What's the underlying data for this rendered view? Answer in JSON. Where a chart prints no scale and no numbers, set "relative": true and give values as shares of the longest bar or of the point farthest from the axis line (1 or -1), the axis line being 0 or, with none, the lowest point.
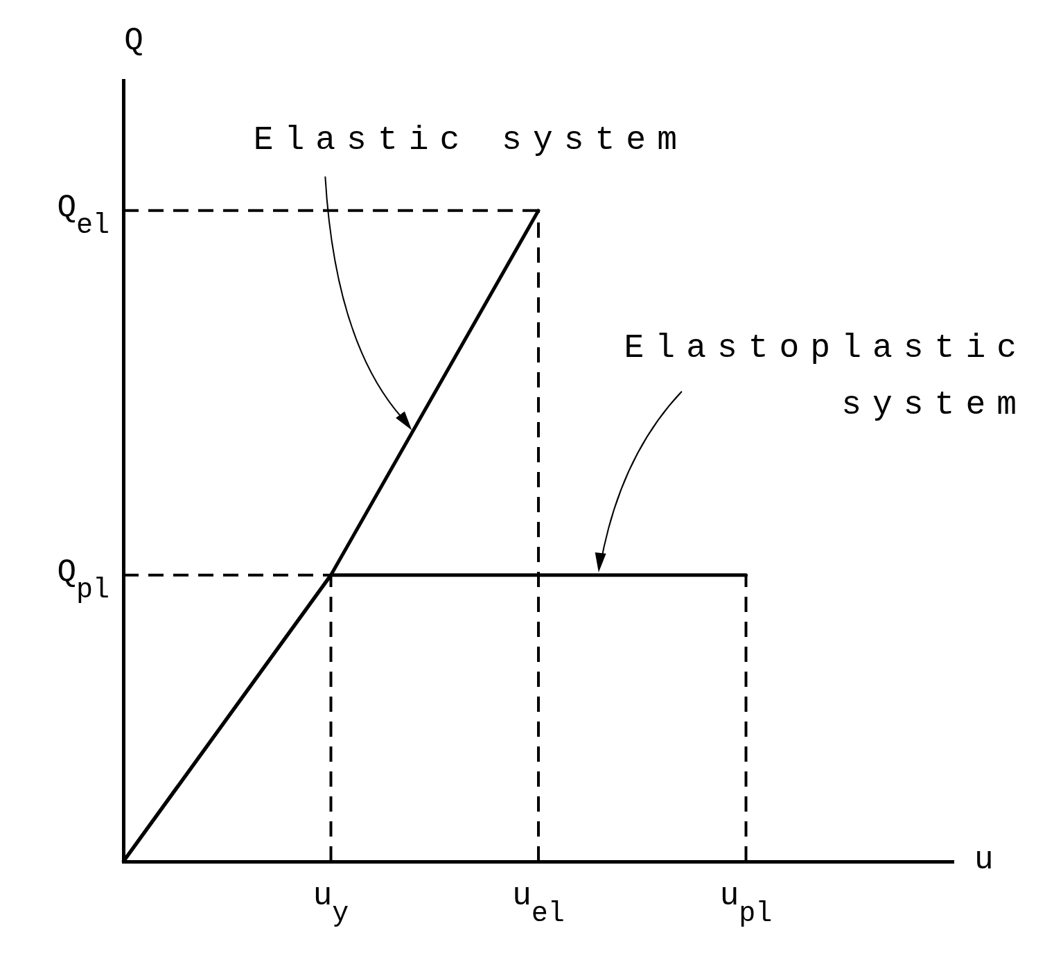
{
  "chart_data": {
    "type": "line",
    "xlabel": "u",
    "ylabel": "Q",
    "relative": true,
    "categories": [
      null,
      "u$_{y}$",
      "u$_{el}$",
      "u$_{pl}$",
      null
    ],
    "series": [
      {
        "color": "#000000",
        "values": [
          0,
          0.44,
          1,
          null,
          null
        ]
      },
      {
        "color": "#000000",
        "values": [
          0,
          0.44,
          0.44,
          0.44,
          null
        ]
      }
    ],
    "ref_lines": [
      {
        "axis": "x",
        "value": "u$_{y}$",
        "color": "#000000",
        "line_style": "dashed"
      },
      {
        "axis": "x",
        "value": "u$_{el}$",
        "color": "#000000",
        "line_style": "dashed"
      },
      {
        "axis": "x",
        "value": "u$_{pl}$",
        "color": "#000000",
        "line_style": "dashed"
      },
      {
        "axis": "y",
        "value": 0.44,
        "label": "Q$_{pl}$",
        "color": "#000000",
        "line_style": "dashed"
      },
      {
        "axis": "y",
        "value": 1,
        "label": "Q$_{el}$",
        "color": "#000000",
        "line_style": "dashed"
      }
    ],
    "annotations": [
      "Elastic system",
      "Elastoplastic system"
    ],
    "marker": "none",
    "legend": false
  }
}
